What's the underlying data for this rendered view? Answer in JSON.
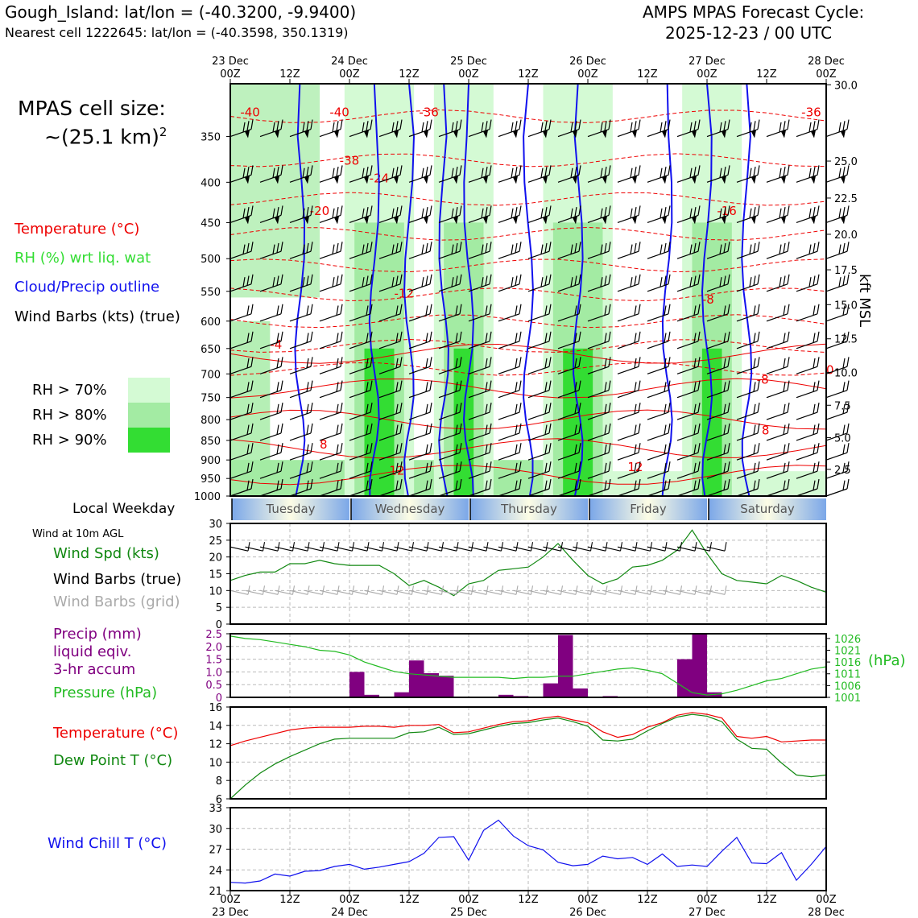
{
  "header": {
    "location": "Gough_Island: lat/lon = (-40.3200, -9.9400)",
    "nearest_cell": "Nearest cell 1222645: lat/lon = (-40.3598, 350.1319)",
    "cycle_title": "AMPS MPAS Forecast Cycle:",
    "cycle_time": "2025-12-23 / 00 UTC"
  },
  "cell_size": {
    "line1": "MPAS cell size:",
    "line2": "~(25.1 km)",
    "exponent": "2"
  },
  "legend": {
    "temperature": "Temperature (°C)",
    "rh": "RH (%) wrt liq. wat",
    "cloud": "Cloud/Precip outline",
    "wind_barbs": "Wind Barbs (kts) (true)",
    "rh70": "RH > 70%",
    "rh80": "RH > 80%",
    "rh90": "RH > 90%"
  },
  "colors": {
    "rh70": "#d4fad4",
    "rh80": "#a3eba3",
    "rh90": "#33dd33",
    "temperature": "#ee0000",
    "cloud": "#1010ee",
    "wind_speed": "#118811",
    "precip": "#800080",
    "pressure": "#22bb22",
    "dewpoint": "#118811",
    "windchill": "#1010ee",
    "barb_grid": "#aaaaaa"
  },
  "time_axis": {
    "top_labels": [
      {
        "day": "23 Dec",
        "hour": "00Z"
      },
      {
        "day": "",
        "hour": "12Z"
      },
      {
        "day": "24 Dec",
        "hour": "00Z"
      },
      {
        "day": "",
        "hour": "12Z"
      },
      {
        "day": "25 Dec",
        "hour": "00Z"
      },
      {
        "day": "",
        "hour": "12Z"
      },
      {
        "day": "26 Dec",
        "hour": "00Z"
      },
      {
        "day": "",
        "hour": "12Z"
      },
      {
        "day": "27 Dec",
        "hour": "00Z"
      },
      {
        "day": "",
        "hour": "12Z"
      },
      {
        "day": "28 Dec",
        "hour": "00Z"
      }
    ],
    "weekday_label": "Local Weekday",
    "weekdays": [
      "Tuesday",
      "Wednesday",
      "Thursday",
      "Friday",
      "Saturday"
    ]
  },
  "chart_data": [
    {
      "type": "heatmap",
      "panel": "cross-section",
      "x_hours": [
        0,
        120
      ],
      "y_pressure_hpa": [
        1000,
        300
      ],
      "pressure_ticks": [
        "350",
        "400",
        "450",
        "500",
        "550",
        "600",
        "650",
        "700",
        "750",
        "800",
        "850",
        "900",
        "950",
        "1000"
      ],
      "kft_ticks": [
        "30.0",
        "25.0",
        "22.5",
        "20.0",
        "17.5",
        "15.0",
        "12.5",
        "10.0",
        "7.5",
        "5.0",
        "2.5"
      ],
      "kft_label": "kft MSL",
      "temp_contour_labels": [
        "-40",
        "-36",
        "-40",
        "-36",
        "-38",
        "-24",
        "-20",
        "-16",
        "-12",
        "-8",
        "-4",
        "0",
        "-8",
        "8",
        "8",
        "12",
        "12"
      ],
      "rh_columns_hours": [
        [
          26,
          34
        ],
        [
          44,
          50
        ],
        [
          66,
          74
        ],
        [
          94,
          100
        ]
      ]
    },
    {
      "type": "line",
      "panel": "wind",
      "title_small": "Wind at 10m AGL",
      "labels": {
        "speed": "Wind Spd (kts)",
        "barbs_true": "Wind Barbs (true)",
        "barbs_grid": "Wind Barbs (grid)"
      },
      "ylim": [
        0,
        30
      ],
      "y_ticks": [
        "0",
        "5",
        "10",
        "15",
        "20",
        "25",
        "30"
      ],
      "x": [
        0,
        3,
        6,
        9,
        12,
        15,
        18,
        21,
        24,
        27,
        30,
        33,
        36,
        39,
        42,
        45,
        48,
        51,
        54,
        57,
        60,
        63,
        66,
        69,
        72,
        75,
        78,
        81,
        84,
        87,
        90,
        93,
        96,
        99,
        102,
        105,
        108,
        111,
        114,
        117,
        120
      ],
      "values": [
        13,
        14.5,
        15.5,
        15.5,
        18,
        18,
        19,
        18,
        17.5,
        17.5,
        17.5,
        15,
        11.5,
        13,
        11,
        8.5,
        12,
        13,
        16,
        16.5,
        17,
        20,
        24,
        19,
        14.5,
        12,
        13.5,
        17,
        17.5,
        19,
        22,
        28,
        21,
        15,
        13,
        12.5,
        12,
        14.5,
        13,
        11,
        9.5
      ]
    },
    {
      "type": "bar",
      "panel": "precip-pressure",
      "labels": {
        "precip": [
          "Precip (mm)",
          "liquid eqiv.",
          "3-hr accum"
        ],
        "pressure": "Pressure (hPa)",
        "pressure_unit": "(hPa)"
      },
      "precip_ylim": [
        0,
        2.5
      ],
      "precip_ticks": [
        "0",
        "0.5",
        "1.0",
        "1.5",
        "2.0",
        "2.5"
      ],
      "pressure_ticks": [
        "1001",
        "1006",
        "1011",
        "1016",
        "1021",
        "1026"
      ],
      "precip_x": [
        24,
        27,
        33,
        36,
        39,
        42,
        54,
        57,
        63,
        66,
        69,
        75,
        90,
        93,
        96
      ],
      "precip_values": [
        1.0,
        0.1,
        0.2,
        1.45,
        0.95,
        0.85,
        0.1,
        0.05,
        0.55,
        2.45,
        0.35,
        0.05,
        1.5,
        2.5,
        0.2
      ],
      "pressure_ylim": [
        1001,
        1028
      ],
      "pressure_x": [
        0,
        3,
        6,
        9,
        12,
        15,
        18,
        21,
        24,
        27,
        30,
        33,
        36,
        39,
        42,
        45,
        48,
        51,
        54,
        57,
        60,
        63,
        66,
        69,
        72,
        75,
        78,
        81,
        84,
        87,
        90,
        93,
        96,
        99,
        102,
        105,
        108,
        111,
        114,
        117,
        120
      ],
      "pressure_values": [
        1027,
        1026,
        1025.5,
        1024.5,
        1023.5,
        1022.5,
        1021,
        1020.5,
        1019,
        1016,
        1014,
        1012,
        1011,
        1010.5,
        1010,
        1009.5,
        1009.5,
        1009.5,
        1009.5,
        1009,
        1009.5,
        1009.5,
        1010,
        1010,
        1011,
        1012,
        1013,
        1013.5,
        1012.5,
        1011,
        1007,
        1003,
        1002,
        1002.5,
        1004,
        1006,
        1008,
        1009,
        1011,
        1013,
        1014
      ]
    },
    {
      "type": "line",
      "panel": "temperature",
      "labels": {
        "temperature": "Temperature (°C)",
        "dewpoint": "Dew Point T (°C)"
      },
      "ylim": [
        6,
        16
      ],
      "y_ticks": [
        "6",
        "8",
        "10",
        "12",
        "14",
        "16"
      ],
      "x": [
        0,
        3,
        6,
        9,
        12,
        15,
        18,
        21,
        24,
        27,
        30,
        33,
        36,
        39,
        42,
        45,
        48,
        51,
        54,
        57,
        60,
        63,
        66,
        69,
        72,
        75,
        78,
        81,
        84,
        87,
        90,
        93,
        96,
        99,
        102,
        105,
        108,
        111,
        114,
        117,
        120
      ],
      "series": [
        {
          "name": "Temperature (°C)",
          "values": [
            11.8,
            12.3,
            12.7,
            13.1,
            13.5,
            13.7,
            13.8,
            13.8,
            13.8,
            13.9,
            13.9,
            13.8,
            14.0,
            14.0,
            14.1,
            13.2,
            13.3,
            13.7,
            14.1,
            14.4,
            14.5,
            14.8,
            15.0,
            14.6,
            14.3,
            13.3,
            12.7,
            13.0,
            13.8,
            14.3,
            15.1,
            15.4,
            15.2,
            14.8,
            12.8,
            12.6,
            12.8,
            12.2,
            12.3,
            12.4,
            12.4
          ]
        },
        {
          "name": "Dew Point T (°C)",
          "values": [
            6.0,
            7.5,
            8.8,
            9.8,
            10.6,
            11.3,
            12.0,
            12.5,
            12.6,
            12.6,
            12.6,
            12.6,
            13.2,
            13.3,
            13.8,
            13.0,
            13.1,
            13.5,
            13.9,
            14.2,
            14.3,
            14.6,
            14.8,
            14.4,
            13.9,
            12.4,
            12.3,
            12.5,
            13.4,
            14.2,
            14.9,
            15.2,
            15.0,
            14.4,
            12.5,
            11.5,
            11.4,
            9.9,
            8.6,
            8.4,
            8.6
          ]
        }
      ]
    },
    {
      "type": "line",
      "panel": "windchill",
      "labels": {
        "windchill": "Wind Chill T (°C)"
      },
      "ylim": [
        21,
        33
      ],
      "y_ticks": [
        "21",
        "24",
        "27",
        "30",
        "33"
      ],
      "x": [
        0,
        3,
        6,
        9,
        12,
        15,
        18,
        21,
        24,
        27,
        30,
        33,
        36,
        39,
        42,
        45,
        48,
        51,
        54,
        57,
        60,
        63,
        66,
        69,
        72,
        75,
        78,
        81,
        84,
        87,
        90,
        93,
        96,
        99,
        102,
        105,
        108,
        111,
        114,
        117,
        120
      ],
      "values": [
        22.2,
        22.1,
        22.4,
        23.4,
        23.1,
        23.8,
        23.9,
        24.5,
        24.8,
        24.1,
        24.4,
        24.8,
        25.2,
        26.4,
        28.7,
        28.8,
        25.4,
        29.7,
        31.2,
        28.9,
        27.5,
        26.9,
        25.1,
        24.6,
        24.8,
        26.0,
        25.6,
        25.8,
        24.8,
        26.3,
        24.5,
        24.7,
        24.5,
        26.7,
        28.7,
        25.0,
        24.9,
        26.5,
        22.5,
        24.8,
        27.4
      ]
    }
  ]
}
